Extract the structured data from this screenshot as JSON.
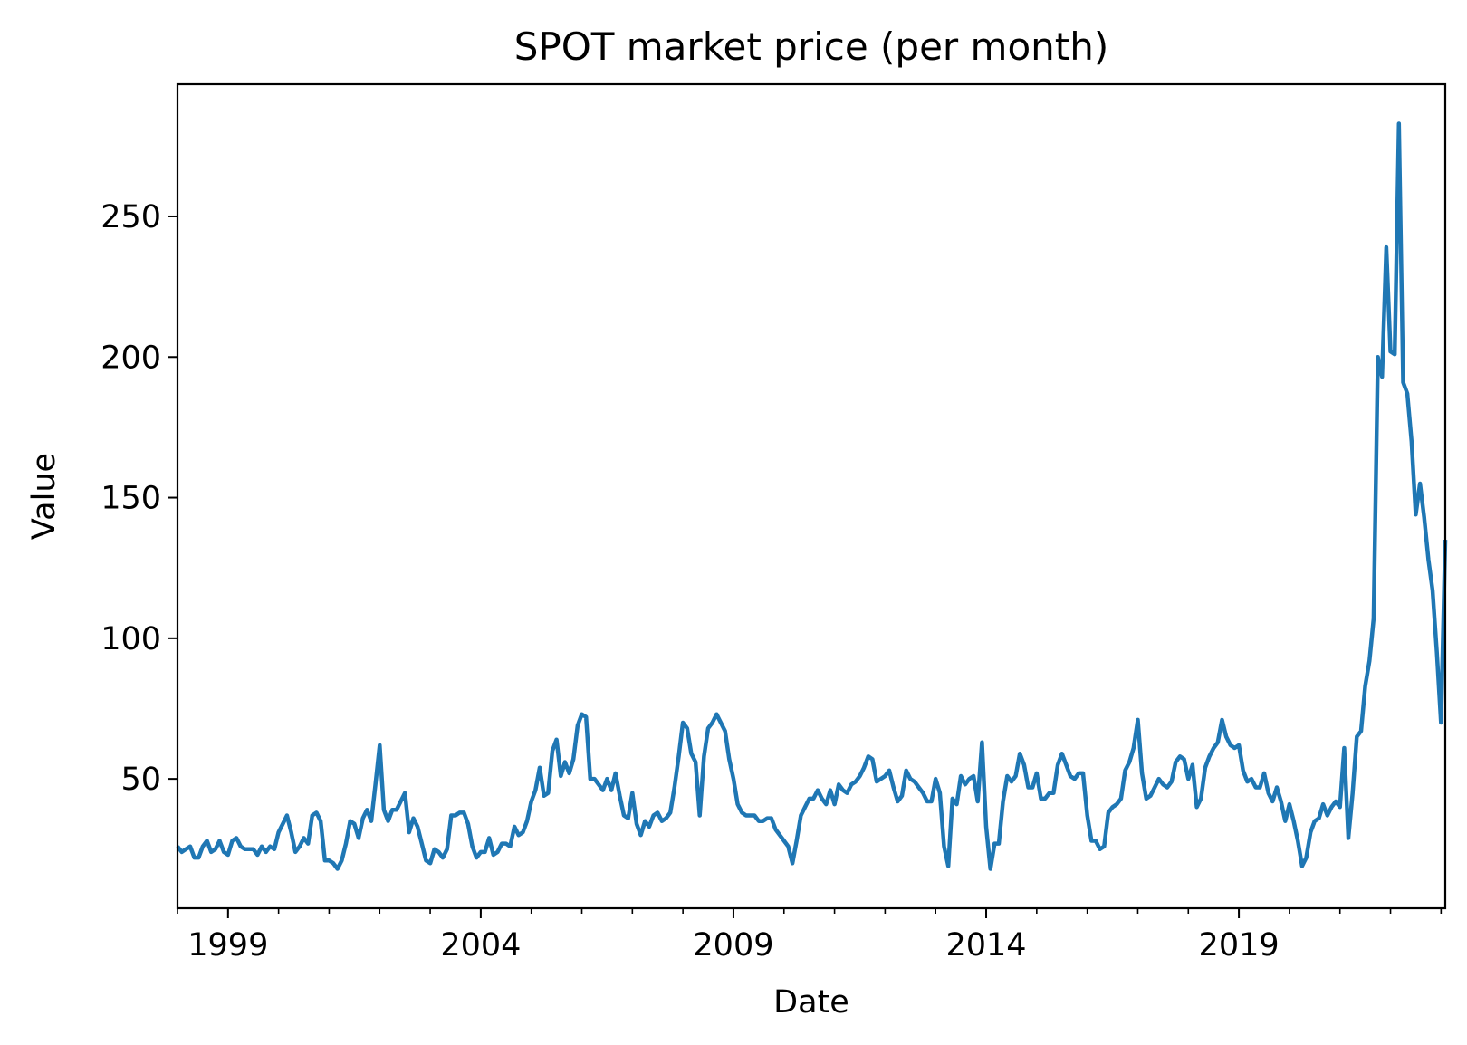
{
  "chart_data": {
    "type": "line",
    "title": "SPOT market price (per month)",
    "xlabel": "Date",
    "ylabel": "Value",
    "xlim": [
      "1998-01",
      "2023-02"
    ],
    "ylim": [
      4,
      297
    ],
    "x_ticks": [
      "1999",
      "2004",
      "2009",
      "2014",
      "2019"
    ],
    "y_ticks": [
      50,
      100,
      150,
      200,
      250
    ],
    "grid": false,
    "line_color": "#1f77b4",
    "series": [
      {
        "x": [
          "1998-01",
          "1998-02",
          "1998-03",
          "1998-04",
          "1998-05",
          "1998-06",
          "1998-07",
          "1998-08",
          "1998-09",
          "1998-10",
          "1998-11",
          "1998-12",
          "1999-01",
          "1999-02",
          "1999-03",
          "1999-04",
          "1999-05",
          "1999-06",
          "1999-07",
          "1999-08",
          "1999-09",
          "1999-10",
          "1999-11",
          "1999-12",
          "2000-01",
          "2000-02",
          "2000-03",
          "2000-04",
          "2000-05",
          "2000-06",
          "2000-07",
          "2000-08",
          "2000-09",
          "2000-10",
          "2000-11",
          "2000-12",
          "2001-01",
          "2001-02",
          "2001-03",
          "2001-04",
          "2001-05",
          "2001-06",
          "2001-07",
          "2001-08",
          "2001-09",
          "2001-10",
          "2001-11",
          "2001-12",
          "2002-01",
          "2002-02",
          "2002-03",
          "2002-04",
          "2002-05",
          "2002-06",
          "2002-07",
          "2002-08",
          "2002-09",
          "2002-10",
          "2002-11",
          "2002-12",
          "2003-01",
          "2003-02",
          "2003-03",
          "2003-04",
          "2003-05",
          "2003-06",
          "2003-07",
          "2003-08",
          "2003-09",
          "2003-10",
          "2003-11",
          "2003-12",
          "2004-01",
          "2004-02",
          "2004-03",
          "2004-04",
          "2004-05",
          "2004-06",
          "2004-07",
          "2004-08",
          "2004-09",
          "2004-10",
          "2004-11",
          "2004-12",
          "2005-01",
          "2005-02",
          "2005-03",
          "2005-04",
          "2005-05",
          "2005-06",
          "2005-07",
          "2005-08",
          "2005-09",
          "2005-10",
          "2005-11",
          "2005-12",
          "2006-01",
          "2006-02",
          "2006-03",
          "2006-04",
          "2006-05",
          "2006-06",
          "2006-07",
          "2006-08",
          "2006-09",
          "2006-10",
          "2006-11",
          "2006-12",
          "2007-01",
          "2007-02",
          "2007-03",
          "2007-04",
          "2007-05",
          "2007-06",
          "2007-07",
          "2007-08",
          "2007-09",
          "2007-10",
          "2007-11",
          "2007-12",
          "2008-01",
          "2008-02",
          "2008-03",
          "2008-04",
          "2008-05",
          "2008-06",
          "2008-07",
          "2008-08",
          "2008-09",
          "2008-10",
          "2008-11",
          "2008-12",
          "2009-01",
          "2009-02",
          "2009-03",
          "2009-04",
          "2009-05",
          "2009-06",
          "2009-07",
          "2009-08",
          "2009-09",
          "2009-10",
          "2009-11",
          "2009-12",
          "2010-01",
          "2010-02",
          "2010-03",
          "2010-04",
          "2010-05",
          "2010-06",
          "2010-07",
          "2010-08",
          "2010-09",
          "2010-10",
          "2010-11",
          "2010-12",
          "2011-01",
          "2011-02",
          "2011-03",
          "2011-04",
          "2011-05",
          "2011-06",
          "2011-07",
          "2011-08",
          "2011-09",
          "2011-10",
          "2011-11",
          "2011-12",
          "2012-01",
          "2012-02",
          "2012-03",
          "2012-04",
          "2012-05",
          "2012-06",
          "2012-07",
          "2012-08",
          "2012-09",
          "2012-10",
          "2012-11",
          "2012-12",
          "2013-01",
          "2013-02",
          "2013-03",
          "2013-04",
          "2013-05",
          "2013-06",
          "2013-07",
          "2013-08",
          "2013-09",
          "2013-10",
          "2013-11",
          "2013-12",
          "2014-01",
          "2014-02",
          "2014-03",
          "2014-04",
          "2014-05",
          "2014-06",
          "2014-07",
          "2014-08",
          "2014-09",
          "2014-10",
          "2014-11",
          "2014-12",
          "2015-01",
          "2015-02",
          "2015-03",
          "2015-04",
          "2015-05",
          "2015-06",
          "2015-07",
          "2015-08",
          "2015-09",
          "2015-10",
          "2015-11",
          "2015-12",
          "2016-01",
          "2016-02",
          "2016-03",
          "2016-04",
          "2016-05",
          "2016-06",
          "2016-07",
          "2016-08",
          "2016-09",
          "2016-10",
          "2016-11",
          "2016-12",
          "2017-01",
          "2017-02",
          "2017-03",
          "2017-04",
          "2017-05",
          "2017-06",
          "2017-07",
          "2017-08",
          "2017-09",
          "2017-10",
          "2017-11",
          "2017-12",
          "2018-01",
          "2018-02",
          "2018-03",
          "2018-04",
          "2018-05",
          "2018-06",
          "2018-07",
          "2018-08",
          "2018-09",
          "2018-10",
          "2018-11",
          "2018-12",
          "2019-01",
          "2019-02",
          "2019-03",
          "2019-04",
          "2019-05",
          "2019-06",
          "2019-07",
          "2019-08",
          "2019-09",
          "2019-10",
          "2019-11",
          "2019-12",
          "2020-01",
          "2020-02",
          "2020-03",
          "2020-04",
          "2020-05",
          "2020-06",
          "2020-07",
          "2020-08",
          "2020-09",
          "2020-10",
          "2020-11",
          "2020-12",
          "2021-01",
          "2021-02",
          "2021-03",
          "2021-04",
          "2021-05",
          "2021-06",
          "2021-07",
          "2021-08",
          "2021-09",
          "2021-10",
          "2021-11",
          "2021-12",
          "2022-01",
          "2022-02",
          "2022-03",
          "2022-04",
          "2022-05",
          "2022-06",
          "2022-07",
          "2022-08",
          "2022-09",
          "2022-10",
          "2022-11",
          "2022-12",
          "2023-01",
          "2023-02"
        ],
        "values": [
          26,
          24,
          25,
          26,
          22,
          22,
          26,
          28,
          24,
          25,
          28,
          24,
          23,
          28,
          29,
          26,
          25,
          25,
          25,
          23,
          26,
          24,
          26,
          25,
          31,
          34,
          37,
          31,
          24,
          26,
          29,
          27,
          37,
          38,
          35,
          21,
          21,
          20,
          18,
          21,
          27,
          35,
          34,
          29,
          36,
          39,
          35,
          48,
          62,
          39,
          35,
          39,
          39,
          42,
          45,
          31,
          36,
          33,
          27,
          21,
          20,
          25,
          24,
          22,
          25,
          37,
          37,
          38,
          38,
          34,
          26,
          22,
          24,
          24,
          29,
          23,
          24,
          27,
          27,
          26,
          33,
          30,
          31,
          35,
          42,
          46,
          54,
          44,
          45,
          60,
          64,
          51,
          56,
          52,
          57,
          69,
          73,
          72,
          50,
          50,
          48,
          46,
          50,
          46,
          52,
          44,
          37,
          36,
          45,
          34,
          30,
          35,
          33,
          37,
          38,
          35,
          36,
          38,
          47,
          58,
          70,
          68,
          59,
          56,
          37,
          58,
          68,
          70,
          73,
          70,
          67,
          57,
          50,
          41,
          38,
          37,
          37,
          37,
          35,
          35,
          36,
          36,
          32,
          30,
          28,
          26,
          20,
          28,
          37,
          40,
          43,
          43,
          46,
          43,
          41,
          46,
          41,
          48,
          46,
          45,
          48,
          49,
          51,
          54,
          58,
          57,
          49,
          50,
          51,
          53,
          47,
          42,
          44,
          53,
          50,
          49,
          47,
          45,
          42,
          42,
          50,
          45,
          26,
          19,
          43,
          41,
          51,
          48,
          50,
          51,
          42,
          63,
          33,
          18,
          27,
          27,
          42,
          51,
          49,
          51,
          59,
          55,
          47,
          47,
          52,
          43,
          43,
          45,
          45,
          55,
          59,
          55,
          51,
          50,
          52,
          52,
          37,
          28,
          28,
          25,
          26,
          38,
          40,
          41,
          43,
          53,
          56,
          61,
          71,
          52,
          43,
          44,
          47,
          50,
          48,
          47,
          49,
          56,
          58,
          57,
          50,
          55,
          40,
          43,
          54,
          58,
          61,
          63,
          71,
          65,
          62,
          61,
          62,
          53,
          49,
          50,
          47,
          47,
          52,
          45,
          42,
          47,
          42,
          35,
          41,
          35,
          28,
          19,
          22,
          31,
          35,
          36,
          41,
          37,
          40,
          42,
          40,
          61,
          29,
          45,
          65,
          67,
          83,
          92,
          107,
          200,
          193,
          239,
          202,
          201,
          283,
          191,
          187,
          170,
          144,
          155,
          143,
          128,
          117,
          95,
          70,
          135
        ]
      }
    ]
  }
}
